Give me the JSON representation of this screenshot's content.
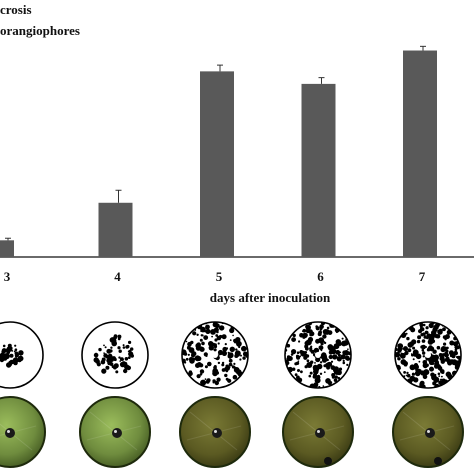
{
  "chart_data": {
    "type": "bar",
    "legend_text": [
      "crosis",
      "orangiophores"
    ],
    "xlabel": "days after inoculation",
    "ylabel": "",
    "categories": [
      "3",
      "4",
      "5",
      "6",
      "7"
    ],
    "series": [
      {
        "values": [
          8,
          26,
          89,
          83,
          99
        ],
        "errors": [
          1,
          6,
          3,
          3,
          2
        ]
      }
    ],
    "ylim": [
      0,
      105
    ],
    "grid": false,
    "bar_color": "#595959"
  },
  "image_rows": [
    {
      "kind": "binary-mask",
      "count": 5
    },
    {
      "kind": "leaf-disc-photo",
      "count": 5
    }
  ],
  "colors": {
    "leaf_green": "#6f8c3e",
    "leaf_dark": "#3a4a1a",
    "leaf_olive": "#5b5a22",
    "mask_black": "#000000"
  }
}
